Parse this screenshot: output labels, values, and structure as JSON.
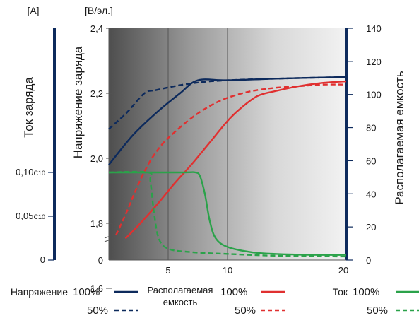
{
  "chart_data": {
    "type": "line",
    "x_ticks": [
      "5",
      "10",
      "20"
    ],
    "axes": {
      "current": {
        "unit": "[A]",
        "label": "Ток заряда",
        "tick_labels": [
          {
            "main": "0,10",
            "sub": "C10",
            "value": 0.1
          },
          {
            "main": "0,05",
            "sub": "C10",
            "value": 0.05
          },
          {
            "main": "0",
            "sub": "",
            "value": 0
          }
        ]
      },
      "voltage": {
        "unit": "[В/эл.]",
        "label": "Напряжение заряда",
        "tick_labels": [
          "2,4",
          "2,2",
          "2,0",
          "1,8",
          "1,6",
          "0"
        ],
        "range": [
          1.4,
          2.4
        ]
      },
      "capacity": {
        "label": "Располагаемая емкость",
        "ticks": [
          0,
          20,
          40,
          60,
          80,
          100,
          120,
          140
        ],
        "range": [
          0,
          140
        ]
      }
    },
    "series": [
      {
        "key": "voltage_100",
        "color": "#0d2a5c",
        "dashed": false,
        "axis": "voltage",
        "points": [
          [
            0,
            1.98
          ],
          [
            2,
            2.07
          ],
          [
            4,
            2.14
          ],
          [
            6,
            2.2
          ],
          [
            7.5,
            2.24
          ],
          [
            10,
            2.24
          ],
          [
            14,
            2.245
          ],
          [
            20,
            2.25
          ]
        ]
      },
      {
        "key": "voltage_50",
        "color": "#0d2a5c",
        "dashed": true,
        "axis": "voltage",
        "points": [
          [
            0,
            2.09
          ],
          [
            1.5,
            2.14
          ],
          [
            3,
            2.2
          ],
          [
            4,
            2.21
          ],
          [
            6,
            2.225
          ],
          [
            8,
            2.235
          ],
          [
            10,
            2.24
          ],
          [
            14,
            2.245
          ],
          [
            20,
            2.25
          ]
        ]
      },
      {
        "key": "capacity_100",
        "color": "#e03030",
        "dashed": false,
        "axis": "capacity",
        "points": [
          [
            1.4,
            13
          ],
          [
            2.5,
            21
          ],
          [
            4,
            33
          ],
          [
            5.5,
            46
          ],
          [
            7,
            58
          ],
          [
            8.5,
            71
          ],
          [
            10,
            84
          ],
          [
            11,
            91
          ],
          [
            12.5,
            99
          ],
          [
            14,
            102
          ],
          [
            16,
            105
          ],
          [
            18,
            107
          ],
          [
            20,
            108
          ]
        ]
      },
      {
        "key": "capacity_50",
        "color": "#e03030",
        "dashed": true,
        "axis": "capacity",
        "points": [
          [
            0.6,
            15
          ],
          [
            1.5,
            29
          ],
          [
            2.5,
            46
          ],
          [
            3.5,
            60
          ],
          [
            4.5,
            70
          ],
          [
            5.5,
            77
          ],
          [
            7,
            86
          ],
          [
            8.5,
            93
          ],
          [
            10,
            98
          ],
          [
            12,
            102
          ],
          [
            14,
            104
          ],
          [
            16,
            105
          ],
          [
            18,
            106
          ],
          [
            20,
            106
          ]
        ]
      },
      {
        "key": "current_100",
        "color": "#2ba24a",
        "dashed": false,
        "axis": "current",
        "points": [
          [
            0,
            0.1
          ],
          [
            6,
            0.1
          ],
          [
            7.3,
            0.1
          ],
          [
            7.7,
            0.095
          ],
          [
            8.1,
            0.075
          ],
          [
            8.5,
            0.045
          ],
          [
            9,
            0.025
          ],
          [
            10,
            0.015
          ],
          [
            12,
            0.009
          ],
          [
            14,
            0.007
          ],
          [
            17,
            0.006
          ],
          [
            20,
            0.006
          ]
        ]
      },
      {
        "key": "current_50",
        "color": "#2ba24a",
        "dashed": true,
        "axis": "current",
        "points": [
          [
            0,
            0.1
          ],
          [
            3.3,
            0.1
          ],
          [
            3.5,
            0.09
          ],
          [
            3.8,
            0.055
          ],
          [
            4.2,
            0.025
          ],
          [
            5,
            0.013
          ],
          [
            7,
            0.009
          ],
          [
            10,
            0.007
          ],
          [
            14,
            0.005
          ],
          [
            20,
            0.004
          ]
        ]
      }
    ]
  },
  "legend": {
    "groups": [
      {
        "label": "Напряжение",
        "items": [
          {
            "pct": "100%",
            "color": "#0d2a5c",
            "dashed": false
          },
          {
            "pct": "50%",
            "color": "#0d2a5c",
            "dashed": true
          }
        ]
      },
      {
        "label_line1": "Располагаемая",
        "label_line2": "емкость",
        "items": [
          {
            "pct": "100%",
            "color": "#e03030",
            "dashed": false
          },
          {
            "pct": "50%",
            "color": "#e03030",
            "dashed": true
          }
        ]
      },
      {
        "label": "Ток",
        "items": [
          {
            "pct": "100%",
            "color": "#2ba24a",
            "dashed": false
          },
          {
            "pct": "50%",
            "color": "#2ba24a",
            "dashed": true
          }
        ]
      }
    ]
  }
}
